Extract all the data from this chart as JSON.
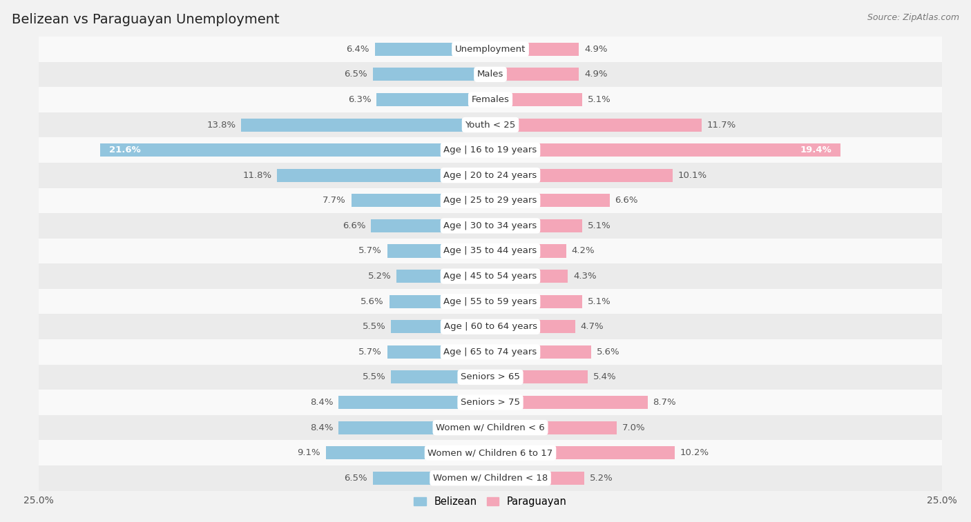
{
  "title": "Belizean vs Paraguayan Unemployment",
  "source": "Source: ZipAtlas.com",
  "categories": [
    "Unemployment",
    "Males",
    "Females",
    "Youth < 25",
    "Age | 16 to 19 years",
    "Age | 20 to 24 years",
    "Age | 25 to 29 years",
    "Age | 30 to 34 years",
    "Age | 35 to 44 years",
    "Age | 45 to 54 years",
    "Age | 55 to 59 years",
    "Age | 60 to 64 years",
    "Age | 65 to 74 years",
    "Seniors > 65",
    "Seniors > 75",
    "Women w/ Children < 6",
    "Women w/ Children 6 to 17",
    "Women w/ Children < 18"
  ],
  "belizean": [
    6.4,
    6.5,
    6.3,
    13.8,
    21.6,
    11.8,
    7.7,
    6.6,
    5.7,
    5.2,
    5.6,
    5.5,
    5.7,
    5.5,
    8.4,
    8.4,
    9.1,
    6.5
  ],
  "paraguayan": [
    4.9,
    4.9,
    5.1,
    11.7,
    19.4,
    10.1,
    6.6,
    5.1,
    4.2,
    4.3,
    5.1,
    4.7,
    5.6,
    5.4,
    8.7,
    7.0,
    10.2,
    5.2
  ],
  "belizean_color": "#92c5de",
  "paraguayan_color": "#f4a6b8",
  "belizean_label": "Belizean",
  "paraguayan_label": "Paraguayan",
  "max_val": 25.0,
  "bg_color": "#f2f2f2",
  "row_light_color": "#f9f9f9",
  "row_dark_color": "#ebebeb",
  "bar_height": 0.52,
  "title_fontsize": 14,
  "label_fontsize": 9.5,
  "value_fontsize": 9.5,
  "legend_fontsize": 10.5,
  "source_fontsize": 9,
  "value_color_dark": "#555555",
  "value_color_white": "#ffffff"
}
